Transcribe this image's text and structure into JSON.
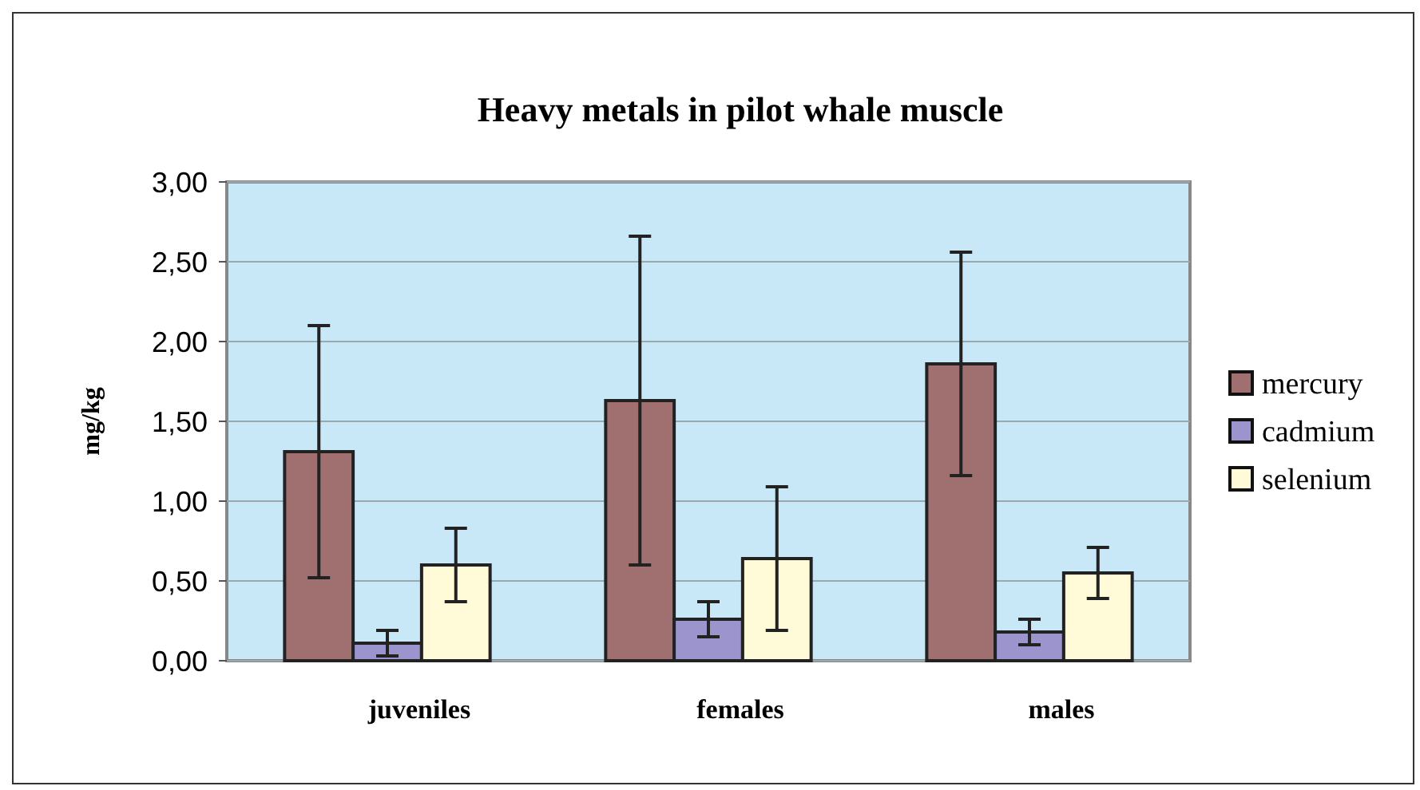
{
  "chart_data": {
    "type": "bar",
    "title": "Heavy metals in pilot whale muscle",
    "ylabel": "mg/kg",
    "categories": [
      "juveniles",
      "females",
      "males"
    ],
    "series": [
      {
        "name": "mercury",
        "color": "#a07070",
        "values": [
          1.31,
          1.63,
          1.86
        ],
        "errors": [
          0.79,
          1.03,
          0.7
        ]
      },
      {
        "name": "cadmium",
        "color": "#9c94cc",
        "values": [
          0.11,
          0.26,
          0.18
        ],
        "errors": [
          0.08,
          0.11,
          0.08
        ]
      },
      {
        "name": "selenium",
        "color": "#fffad8",
        "values": [
          0.6,
          0.64,
          0.55
        ],
        "errors": [
          0.23,
          0.45,
          0.16
        ]
      }
    ],
    "ylim": [
      0,
      3
    ],
    "yticks": [
      {
        "value": 0,
        "label": "0,00"
      },
      {
        "value": 0.5,
        "label": "0,50"
      },
      {
        "value": 1,
        "label": "1,00"
      },
      {
        "value": 1.5,
        "label": "1,50"
      },
      {
        "value": 2,
        "label": "2,00"
      },
      {
        "value": 2.5,
        "label": "2,50"
      },
      {
        "value": 3,
        "label": "3,00"
      }
    ],
    "grid": "y",
    "legend": "right"
  }
}
